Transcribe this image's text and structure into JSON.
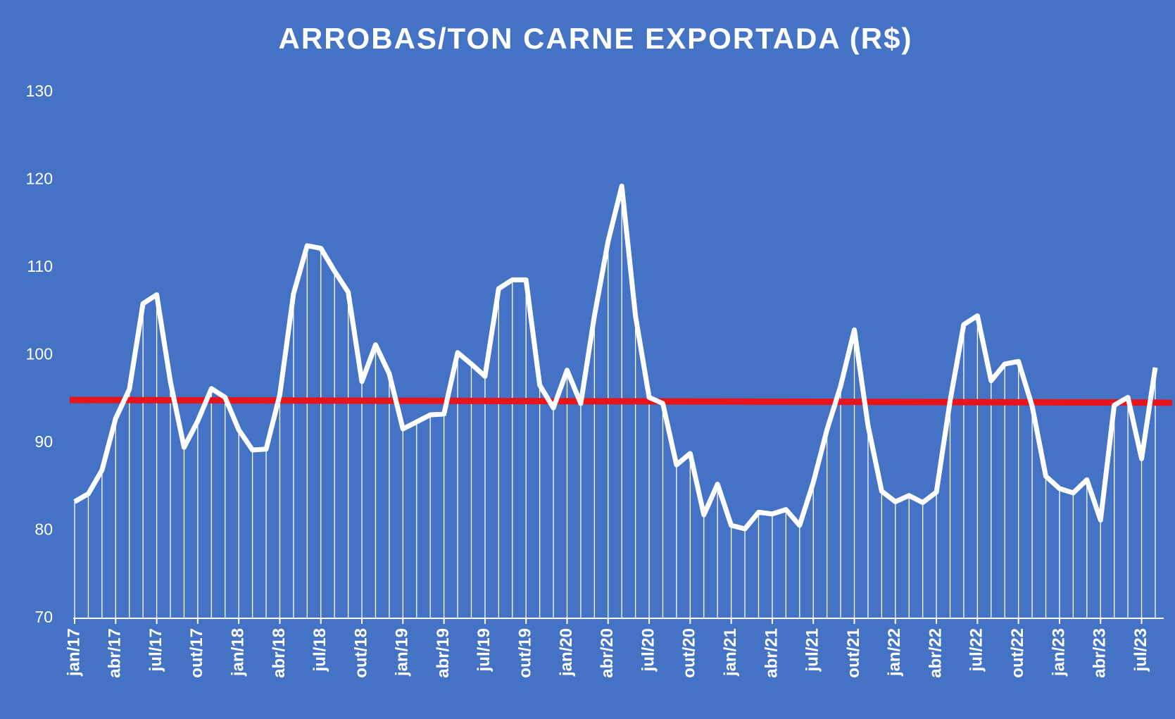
{
  "chart_data": {
    "type": "line",
    "title": "ARROBAS/TON CARNE EXPORTADA (R$)",
    "categories": [
      "jan/17",
      null,
      null,
      "abr/17",
      null,
      null,
      "jul/17",
      null,
      null,
      "out/17",
      null,
      null,
      "jan/18",
      null,
      null,
      "abr/18",
      null,
      null,
      "jul/18",
      null,
      null,
      "out/18",
      null,
      null,
      "jan/19",
      null,
      null,
      "abr/19",
      null,
      null,
      "jul/19",
      null,
      null,
      "out/19",
      null,
      null,
      "jan/20",
      null,
      null,
      "abr/20",
      null,
      null,
      "jul/20",
      null,
      null,
      "out/20",
      null,
      null,
      "jan/21",
      null,
      null,
      "abr/21",
      null,
      null,
      "jul/21",
      null,
      null,
      "out/21",
      null,
      null,
      "jan/22",
      null,
      null,
      "abr/22",
      null,
      null,
      "jul/22",
      null,
      null,
      "out/22",
      null,
      null,
      "jan/23",
      null,
      null,
      "abr/23",
      null,
      null,
      "jul/23",
      null
    ],
    "series": [
      {
        "color": "#ffffff",
        "values": [
          83.3,
          84.2,
          86.9,
          92.8,
          96.1,
          105.9,
          106.9,
          97.0,
          89.5,
          92.5,
          96.2,
          95.2,
          91.5,
          89.2,
          89.3,
          95.5,
          107.0,
          112.5,
          112.2,
          109.6,
          107.2,
          97.0,
          101.2,
          97.9,
          91.6,
          92.4,
          93.2,
          93.3,
          100.3,
          99.0,
          97.6,
          107.6,
          108.6,
          108.6,
          96.6,
          94.0,
          98.3,
          94.5,
          104.5,
          113.0,
          119.3,
          104.5,
          95.2,
          94.5,
          87.5,
          88.8,
          81.8,
          85.3,
          80.6,
          80.2,
          82.1,
          81.9,
          82.4,
          80.6,
          85.5,
          91.5,
          96.5,
          102.9,
          92.0,
          84.5,
          83.3,
          84.0,
          83.2,
          84.4,
          94.8,
          103.5,
          104.5,
          97.1,
          99.0,
          99.3,
          94.2,
          86.2,
          84.8,
          84.3,
          85.8,
          81.2,
          94.3,
          95.2,
          88.2,
          98.6
        ]
      }
    ],
    "trendline": {
      "start": 94.9,
      "end": 94.6,
      "color": "#e8141c"
    },
    "ylim": [
      70,
      130
    ],
    "yticks": [
      70,
      80,
      90,
      100,
      110,
      120,
      130
    ],
    "droplines": true
  }
}
